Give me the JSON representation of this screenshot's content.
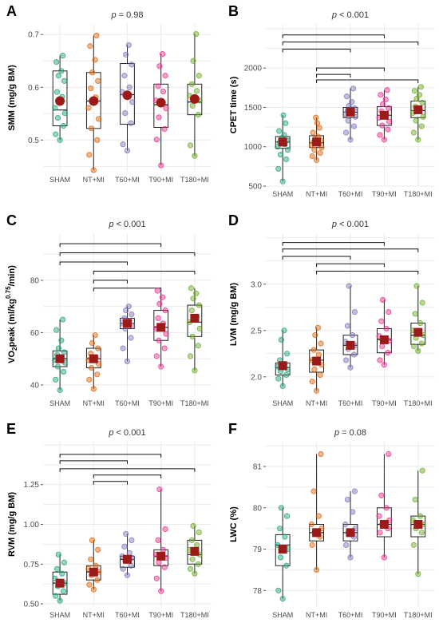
{
  "chart_data": [
    {
      "type": "box-strip",
      "panel": "A",
      "title": "p = 0.98",
      "ylabel": "SMM (mg/g BM)",
      "categories": [
        "SHAM",
        "NT+MI",
        "T60+MI",
        "T90+MI",
        "T180+MI"
      ],
      "ylim": [
        0.44,
        0.72
      ],
      "yticks": [
        0.5,
        0.6,
        0.7
      ],
      "ytick_labels": [
        "0.5",
        "0.6",
        "0.7"
      ],
      "means": [
        0.574,
        0.574,
        0.585,
        0.571,
        0.578
      ],
      "boxes": [
        [
          0.527,
          0.557,
          0.631
        ],
        [
          0.522,
          0.574,
          0.628
        ],
        [
          0.53,
          0.586,
          0.645
        ],
        [
          0.524,
          0.567,
          0.606
        ],
        [
          0.548,
          0.572,
          0.606
        ]
      ],
      "whiskers": [
        [
          0.5,
          0.66
        ],
        [
          0.443,
          0.698
        ],
        [
          0.48,
          0.68
        ],
        [
          0.452,
          0.663
        ],
        [
          0.47,
          0.701
        ]
      ],
      "points": [
        [
          0.5,
          0.511,
          0.527,
          0.542,
          0.551,
          0.561,
          0.582,
          0.591,
          0.612,
          0.622,
          0.631,
          0.648,
          0.66
        ],
        [
          0.443,
          0.472,
          0.5,
          0.522,
          0.54,
          0.561,
          0.581,
          0.598,
          0.612,
          0.628,
          0.652,
          0.678,
          0.698
        ],
        [
          0.48,
          0.492,
          0.532,
          0.551,
          0.572,
          0.591,
          0.6,
          0.622,
          0.643,
          0.662,
          0.68
        ],
        [
          0.452,
          0.501,
          0.521,
          0.543,
          0.56,
          0.575,
          0.592,
          0.602,
          0.622,
          0.64,
          0.663
        ],
        [
          0.47,
          0.49,
          0.548,
          0.565,
          0.575,
          0.584,
          0.593,
          0.606,
          0.622,
          0.65,
          0.701
        ]
      ],
      "brackets": []
    },
    {
      "type": "box-strip",
      "panel": "B",
      "title": "p < 0.001",
      "ylabel": "CPET time (s)",
      "categories": [
        "SHAM",
        "NT+MI",
        "T60+MI",
        "T90+MI",
        "T180+MI"
      ],
      "ylim": [
        500,
        2560
      ],
      "yticks": [
        500,
        1000,
        1500,
        2000
      ],
      "ytick_labels": [
        "500",
        "1000",
        "1500",
        "2000"
      ],
      "means": [
        1060,
        1060,
        1440,
        1400,
        1470
      ],
      "boxes": [
        [
          980,
          1060,
          1130
        ],
        [
          990,
          1050,
          1140
        ],
        [
          1370,
          1440,
          1500
        ],
        [
          1270,
          1400,
          1510
        ],
        [
          1370,
          1460,
          1580
        ]
      ],
      "whiskers": [
        [
          560,
          1400
        ],
        [
          830,
          1370
        ],
        [
          1090,
          1740
        ],
        [
          1090,
          1720
        ],
        [
          1090,
          1760
        ]
      ],
      "points": [
        [
          560,
          720,
          840,
          900,
          960,
          1000,
          1030,
          1060,
          1080,
          1110,
          1150,
          1200,
          1300,
          1400
        ],
        [
          830,
          880,
          920,
          960,
          990,
          1020,
          1040,
          1060,
          1080,
          1100,
          1130,
          1180,
          1240,
          1300,
          1370
        ],
        [
          1090,
          1180,
          1260,
          1330,
          1380,
          1410,
          1440,
          1460,
          1490,
          1520,
          1570,
          1640,
          1740
        ],
        [
          1090,
          1150,
          1220,
          1270,
          1320,
          1370,
          1410,
          1450,
          1490,
          1540,
          1600,
          1660,
          1720
        ],
        [
          1090,
          1180,
          1260,
          1330,
          1380,
          1430,
          1470,
          1510,
          1560,
          1610,
          1660,
          1710,
          1760
        ]
      ],
      "brackets": [
        [
          1,
          4,
          2420
        ],
        [
          1,
          5,
          2330
        ],
        [
          1,
          3,
          2240
        ],
        [
          2,
          4,
          2000
        ],
        [
          2,
          3,
          1920
        ],
        [
          2,
          5,
          1850
        ]
      ]
    },
    {
      "type": "box-strip",
      "panel": "C",
      "title": "p < 0.001",
      "ylabel": "VO2peak (ml/kg^0.75/min)",
      "categories": [
        "SHAM",
        "NT+MI",
        "T60+MI",
        "T90+MI",
        "T180+MI"
      ],
      "ylim": [
        36,
        98
      ],
      "yticks": [
        40,
        60,
        80
      ],
      "ytick_labels": [
        "40",
        "60",
        "80"
      ],
      "means": [
        50,
        50,
        63.5,
        62,
        65.5
      ],
      "boxes": [
        [
          47,
          50,
          53
        ],
        [
          46.5,
          50,
          54
        ],
        [
          61.5,
          63.5,
          65.5
        ],
        [
          57,
          62,
          68.5
        ],
        [
          58.5,
          64,
          70.5
        ]
      ],
      "whiskers": [
        [
          38,
          65
        ],
        [
          38.5,
          59
        ],
        [
          49,
          70
        ],
        [
          47,
          76
        ],
        [
          45.5,
          77
        ]
      ],
      "points": [
        [
          38,
          42,
          45,
          47,
          48.5,
          49.5,
          50.5,
          51.5,
          52.5,
          54,
          57,
          61,
          65
        ],
        [
          38.5,
          42,
          44,
          46.5,
          48,
          49.5,
          50.5,
          52,
          54,
          56,
          59
        ],
        [
          49,
          54,
          58,
          61.5,
          62.5,
          63.5,
          64.5,
          65.5,
          67,
          68.5,
          70
        ],
        [
          47,
          51,
          54,
          57,
          59.5,
          61.5,
          63.5,
          65.5,
          68.5,
          71,
          73.5,
          76
        ],
        [
          45.5,
          51,
          55,
          58.5,
          61.5,
          64,
          66,
          68.5,
          70.5,
          73,
          75,
          77
        ]
      ],
      "brackets": [
        [
          1,
          4,
          94
        ],
        [
          1,
          5,
          90.5
        ],
        [
          1,
          3,
          87
        ],
        [
          2,
          5,
          83.5
        ],
        [
          2,
          3,
          80
        ],
        [
          2,
          4,
          77
        ]
      ]
    },
    {
      "type": "box-strip",
      "panel": "D",
      "title": "p < 0.001",
      "ylabel": "LVM (mg/g BM)",
      "categories": [
        "SHAM",
        "NT+MI",
        "T60+MI",
        "T90+MI",
        "T180+MI"
      ],
      "ylim": [
        1.8,
        3.55
      ],
      "yticks": [
        2.0,
        2.5,
        3.0
      ],
      "ytick_labels": [
        "2.0",
        "2.5",
        "3.0"
      ],
      "means": [
        2.12,
        2.17,
        2.34,
        2.4,
        2.48
      ],
      "boxes": [
        [
          2.02,
          2.1,
          2.15
        ],
        [
          2.05,
          2.18,
          2.29
        ],
        [
          2.24,
          2.34,
          2.45
        ],
        [
          2.26,
          2.4,
          2.52
        ],
        [
          2.35,
          2.45,
          2.58
        ]
      ],
      "whiskers": [
        [
          1.9,
          2.5
        ],
        [
          1.85,
          2.53
        ],
        [
          2.1,
          2.98
        ],
        [
          2.13,
          2.83
        ],
        [
          2.28,
          2.98
        ]
      ],
      "points": [
        [
          1.9,
          1.98,
          2.02,
          2.06,
          2.08,
          2.11,
          2.14,
          2.18,
          2.25,
          2.4,
          2.5
        ],
        [
          1.85,
          1.95,
          2.02,
          2.08,
          2.13,
          2.18,
          2.24,
          2.29,
          2.36,
          2.45,
          2.53
        ],
        [
          2.1,
          2.18,
          2.24,
          2.3,
          2.34,
          2.38,
          2.45,
          2.55,
          2.7,
          2.98
        ],
        [
          2.13,
          2.18,
          2.26,
          2.33,
          2.39,
          2.44,
          2.52,
          2.6,
          2.7,
          2.83
        ],
        [
          2.28,
          2.33,
          2.36,
          2.42,
          2.45,
          2.5,
          2.58,
          2.68,
          2.8,
          2.98
        ]
      ],
      "brackets": [
        [
          1,
          4,
          3.45
        ],
        [
          1,
          5,
          3.38
        ],
        [
          1,
          3,
          3.3
        ],
        [
          2,
          4,
          3.22
        ],
        [
          2,
          5,
          3.14
        ]
      ]
    },
    {
      "type": "box-strip",
      "panel": "E",
      "title": "p < 0.001",
      "ylabel": "RVM (mg/g BM)",
      "categories": [
        "SHAM",
        "NT+MI",
        "T60+MI",
        "T90+MI",
        "T180+MI"
      ],
      "ylim": [
        0.48,
        1.52
      ],
      "yticks": [
        0.5,
        0.75,
        1.0,
        1.25
      ],
      "ytick_labels": [
        "0.50",
        "0.75",
        "1.00",
        "1.25"
      ],
      "means": [
        0.63,
        0.7,
        0.78,
        0.8,
        0.83
      ],
      "boxes": [
        [
          0.56,
          0.63,
          0.7
        ],
        [
          0.65,
          0.7,
          0.74
        ],
        [
          0.73,
          0.78,
          0.8
        ],
        [
          0.74,
          0.8,
          0.84
        ],
        [
          0.75,
          0.81,
          0.9
        ]
      ],
      "whiskers": [
        [
          0.52,
          0.81
        ],
        [
          0.59,
          0.9
        ],
        [
          0.68,
          0.94
        ],
        [
          0.58,
          1.22
        ],
        [
          0.69,
          0.99
        ]
      ],
      "points": [
        [
          0.52,
          0.55,
          0.58,
          0.61,
          0.63,
          0.66,
          0.69,
          0.72,
          0.76,
          0.81
        ],
        [
          0.59,
          0.62,
          0.65,
          0.68,
          0.7,
          0.72,
          0.74,
          0.78,
          0.84,
          0.9
        ],
        [
          0.68,
          0.72,
          0.74,
          0.77,
          0.79,
          0.8,
          0.82,
          0.86,
          0.9,
          0.94
        ],
        [
          0.58,
          0.66,
          0.73,
          0.76,
          0.79,
          0.81,
          0.84,
          0.9,
          0.97,
          1.22
        ],
        [
          0.69,
          0.72,
          0.75,
          0.78,
          0.81,
          0.84,
          0.87,
          0.9,
          0.95,
          0.99
        ]
      ],
      "brackets": [
        [
          1,
          4,
          1.44
        ],
        [
          1,
          3,
          1.4
        ],
        [
          1,
          5,
          1.35
        ],
        [
          2,
          4,
          1.31
        ],
        [
          2,
          3,
          1.27
        ]
      ]
    },
    {
      "type": "box-strip",
      "panel": "F",
      "title": "p = 0.08",
      "ylabel": "LWC (%)",
      "categories": [
        "SHAM",
        "NT+MI",
        "T60+MI",
        "T90+MI",
        "T180+MI"
      ],
      "ylim": [
        77.6,
        81.6
      ],
      "yticks": [
        78,
        79,
        80,
        81
      ],
      "ytick_labels": [
        "78",
        "79",
        "80",
        "81"
      ],
      "means": [
        79.0,
        79.4,
        79.4,
        79.6,
        79.6
      ],
      "boxes": [
        [
          78.6,
          79.1,
          79.35
        ],
        [
          79.2,
          79.4,
          79.6
        ],
        [
          79.2,
          79.4,
          79.6
        ],
        [
          79.3,
          79.6,
          80.0
        ],
        [
          79.3,
          79.6,
          79.8
        ]
      ],
      "whiskers": [
        [
          77.8,
          80.0
        ],
        [
          78.5,
          81.3
        ],
        [
          78.8,
          80.4
        ],
        [
          78.8,
          81.3
        ],
        [
          78.4,
          80.9
        ]
      ],
      "points": [
        [
          77.8,
          78.0,
          78.6,
          78.8,
          79.0,
          79.1,
          79.3,
          79.5,
          79.8,
          80.0
        ],
        [
          78.5,
          79.1,
          79.3,
          79.4,
          79.5,
          79.6,
          79.8,
          80.4,
          81.3
        ],
        [
          78.8,
          79.1,
          79.3,
          79.4,
          79.5,
          79.6,
          79.9,
          80.2,
          80.4
        ],
        [
          78.8,
          79.4,
          79.5,
          79.6,
          79.7,
          79.8,
          80.0,
          80.3,
          81.3
        ],
        [
          78.4,
          79.1,
          79.4,
          79.5,
          79.6,
          79.7,
          79.8,
          80.2,
          80.9
        ]
      ],
      "brackets": []
    }
  ],
  "colors": [
    "#1b9e77",
    "#d95f02",
    "#7570b3",
    "#e7298a",
    "#66a61e"
  ],
  "mean_color": "#9b1b1b",
  "box_color": "#222222",
  "grid_color": "#ebebeb"
}
